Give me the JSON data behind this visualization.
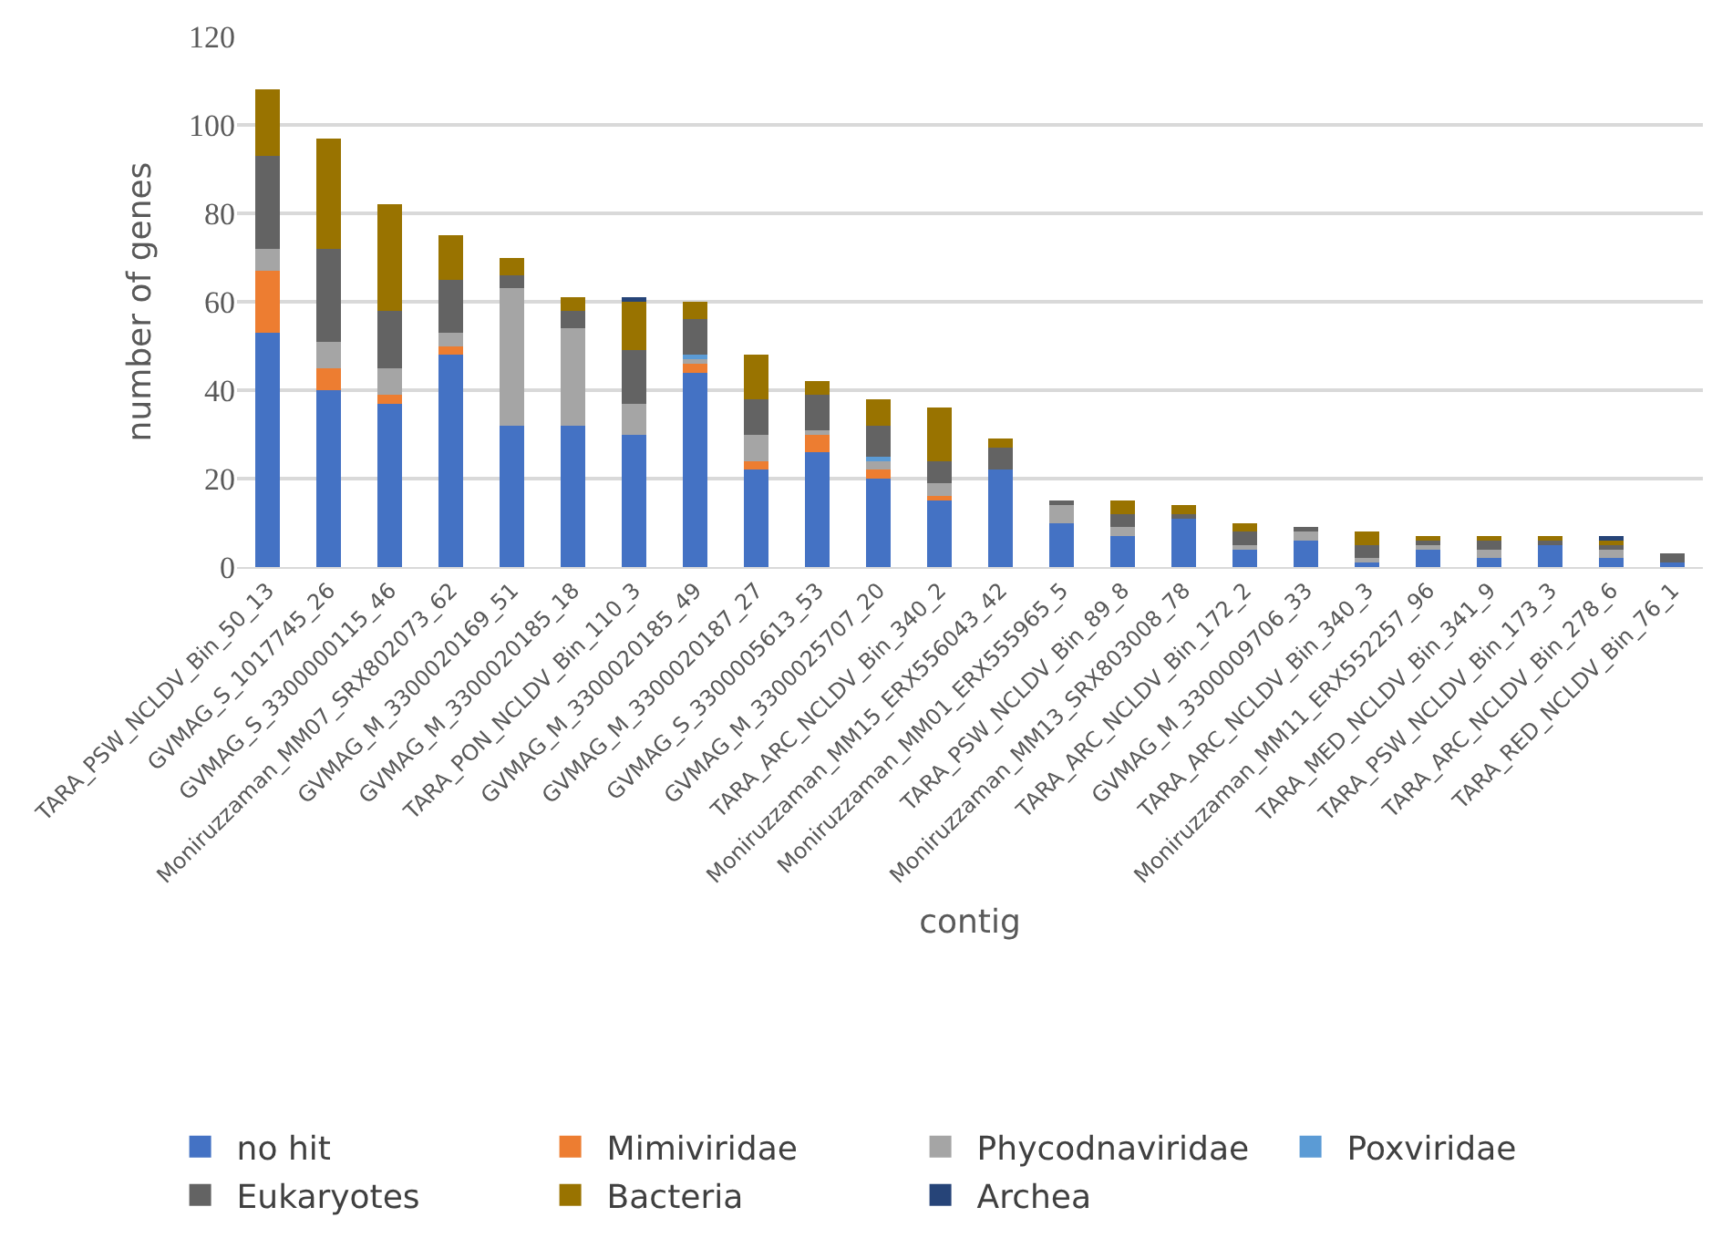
{
  "chart_data": {
    "type": "bar",
    "stacked": true,
    "xlabel": "contig",
    "ylabel": "number of genes",
    "categories": [
      "TARA_PSW_NCLDV_Bin_50_13",
      "GVMAG_S_1017745_26",
      "GVMAG_S_3300000115_46",
      "Moniruzzaman_MM07_SRX802073_62",
      "GVMAG_M_3300020169_51",
      "GVMAG_M_3300020185_18",
      "TARA_PON_NCLDV_Bin_110_3",
      "GVMAG_M_3300020185_49",
      "GVMAG_M_3300020187_27",
      "GVMAG_S_3300005613_53",
      "GVMAG_M_3300025707_20",
      "TARA_ARC_NCLDV_Bin_340_2",
      "Moniruzzaman_MM15_ERX556043_42",
      "Moniruzzaman_MM01_ERX555965_5",
      "TARA_PSW_NCLDV_Bin_89_8",
      "Moniruzzaman_MM13_SRX803008_78",
      "TARA_ARC_NCLDV_Bin_172_2",
      "GVMAG_M_3300009706_33",
      "TARA_ARC_NCLDV_Bin_340_3",
      "Moniruzzaman_MM11_ERX552257_96",
      "TARA_MED_NCLDV_Bin_341_9",
      "TARA_PSW_NCLDV_Bin_173_3",
      "TARA_ARC_NCLDV_Bin_278_6",
      "TARA_RED_NCLDV_Bin_76_1"
    ],
    "series": [
      {
        "name": "no hit",
        "color": "#4472c4",
        "values": [
          53,
          40,
          37,
          48,
          32,
          32,
          30,
          44,
          22,
          26,
          20,
          15,
          22,
          10,
          7,
          11,
          4,
          6,
          1,
          4,
          2,
          5,
          2,
          1
        ]
      },
      {
        "name": "Mimiviridae",
        "color": "#ed7d31",
        "values": [
          14,
          5,
          2,
          2,
          0,
          0,
          0,
          2,
          2,
          4,
          2,
          1,
          0,
          0,
          0,
          0,
          0,
          0,
          0,
          0,
          0,
          0,
          0,
          0
        ]
      },
      {
        "name": "Phycodnaviridae",
        "color": "#a5a5a5",
        "values": [
          5,
          6,
          6,
          3,
          31,
          22,
          7,
          1,
          6,
          1,
          2,
          3,
          0,
          4,
          2,
          0,
          1,
          2,
          1,
          1,
          2,
          0,
          2,
          0
        ]
      },
      {
        "name": "Poxviridae",
        "color": "#5b9bd5",
        "values": [
          0,
          0,
          0,
          0,
          0,
          0,
          0,
          1,
          0,
          0,
          1,
          0,
          0,
          0,
          0,
          0,
          0,
          0,
          0,
          0,
          0,
          0,
          0,
          0
        ]
      },
      {
        "name": "Eukaryotes",
        "color": "#636363",
        "values": [
          21,
          21,
          13,
          12,
          3,
          4,
          12,
          8,
          8,
          8,
          7,
          5,
          5,
          1,
          3,
          1,
          3,
          1,
          3,
          1,
          2,
          1,
          1,
          2
        ]
      },
      {
        "name": "Bacteria",
        "color": "#997300",
        "values": [
          15,
          25,
          24,
          10,
          4,
          3,
          11,
          4,
          10,
          3,
          6,
          12,
          2,
          0,
          3,
          2,
          2,
          0,
          3,
          1,
          1,
          1,
          1,
          0
        ]
      },
      {
        "name": "Archea",
        "color": "#264478",
        "values": [
          0,
          0,
          0,
          0,
          0,
          0,
          1,
          0,
          0,
          0,
          0,
          0,
          0,
          0,
          0,
          0,
          0,
          0,
          0,
          0,
          0,
          0,
          1,
          0
        ]
      }
    ],
    "ylim": [
      0,
      120
    ],
    "yticks": [
      0,
      20,
      40,
      60,
      80,
      100,
      120
    ],
    "grid": "y",
    "legend": "bottom"
  }
}
